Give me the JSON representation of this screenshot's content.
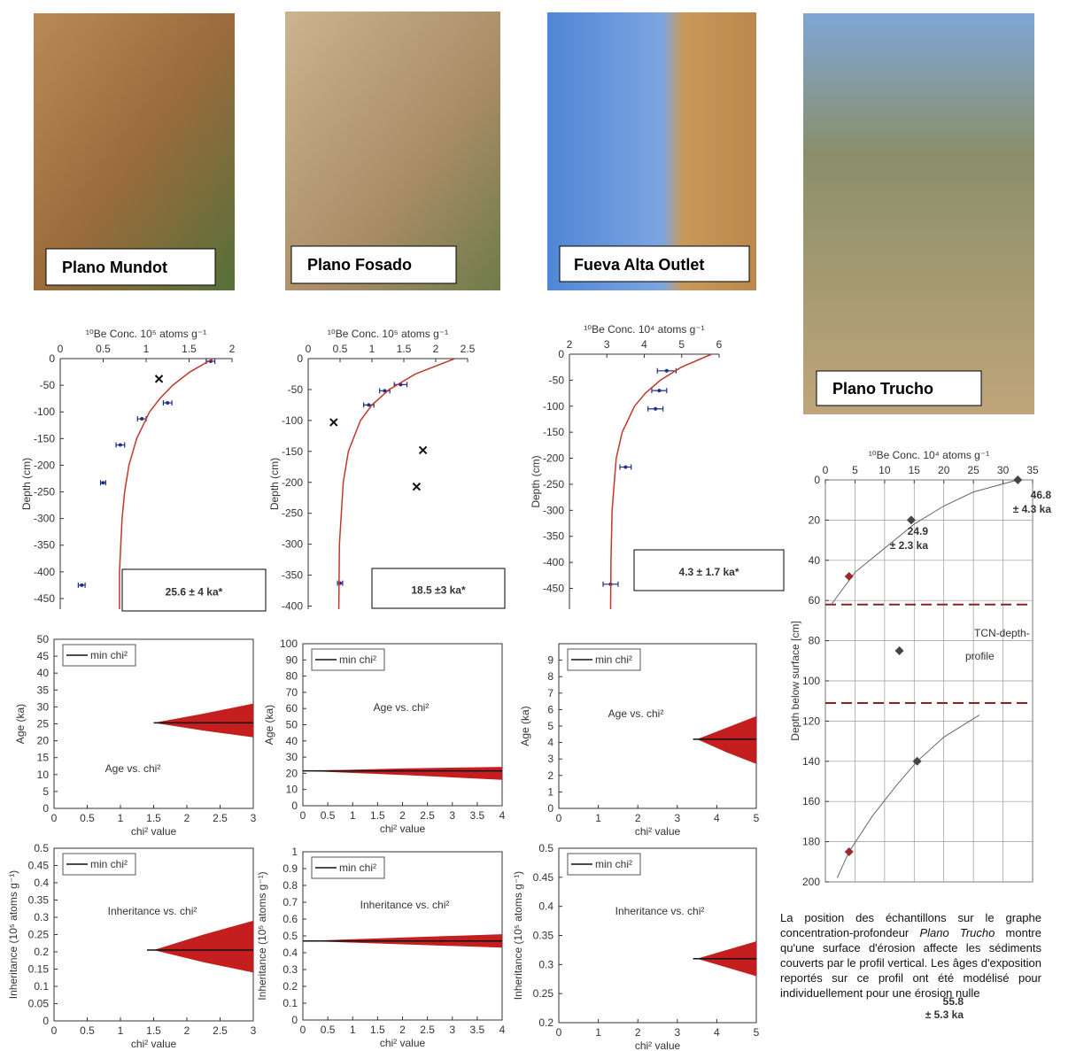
{
  "photos": [
    {
      "label": "Plano Mundot"
    },
    {
      "label": "Plano Fosado"
    },
    {
      "label": "Fueva Alta Outlet"
    },
    {
      "label": "Plano Trucho"
    }
  ],
  "caption": [
    "La position des échantillons sur le graphe concentration-profondeur ",
    "Plano Trucho",
    " montre qu'une surface d'érosion affecte les sédiments couverts par le profil vertical. Les âges d'exposition reportés sur ce profil ont été modélisé pour individuellement pour une érosion nulle"
  ],
  "chart_data": [
    {
      "type": "scatter",
      "xaxis": "top",
      "xlabel": "¹⁰Be Conc. 10⁵ atoms g⁻¹",
      "ylabel": "Depth (cm)",
      "xlim": [
        0,
        2
      ],
      "xticks": [
        0,
        0.5,
        1,
        1.5,
        2
      ],
      "ylim": [
        -470,
        0
      ],
      "yticks": [
        0,
        -50,
        -100,
        -150,
        -200,
        -250,
        -300,
        -350,
        -400,
        -450
      ],
      "annotations": [
        "25.6 ± 4 ka*"
      ],
      "series": [
        {
          "type": "scatter",
          "marker": "dot",
          "color": "#1f2f8a",
          "x": [
            1.75,
            1.25,
            0.95,
            0.7,
            0.5,
            0.25
          ],
          "values": [
            -5,
            -83,
            -113,
            -162,
            -233,
            -425
          ],
          "error": [
            0.05,
            0.05,
            0.05,
            0.05,
            0.03,
            0.04
          ]
        },
        {
          "type": "scatter",
          "marker": "x",
          "color": "#111111",
          "x": [
            1.15
          ],
          "values": [
            -38
          ]
        },
        {
          "type": "line",
          "color": "#c0392b",
          "x": [
            1.78,
            1.51,
            1.31,
            1.16,
            1.04,
            0.89,
            0.8,
            0.75,
            0.72,
            0.69,
            0.69
          ],
          "values": [
            0,
            -25,
            -50,
            -75,
            -100,
            -150,
            -200,
            -250,
            -300,
            -400,
            -470
          ]
        }
      ]
    },
    {
      "type": "scatter",
      "xaxis": "top",
      "xlabel": "¹⁰Be Conc. 10⁵ atoms g⁻¹",
      "ylabel": "Depth (cm)",
      "xlim": [
        0,
        2.5
      ],
      "xticks": [
        0,
        0.5,
        1,
        1.5,
        2,
        2.5
      ],
      "ylim": [
        -405,
        0
      ],
      "yticks": [
        0,
        -50,
        -100,
        -150,
        -200,
        -250,
        -300,
        -350,
        -400
      ],
      "annotations": [
        "18.5 ±3 ka*"
      ],
      "series": [
        {
          "type": "scatter",
          "marker": "dot",
          "color": "#1f2f8a",
          "x": [
            1.45,
            1.2,
            0.95,
            0.5
          ],
          "values": [
            -42,
            -52,
            -75,
            -363
          ],
          "error": [
            0.1,
            0.08,
            0.08,
            0.04
          ]
        },
        {
          "type": "scatter",
          "marker": "x",
          "color": "#111111",
          "x": [
            0.4,
            1.8,
            1.7
          ],
          "values": [
            -103,
            -148,
            -207
          ]
        },
        {
          "type": "line",
          "color": "#c0392b",
          "x": [
            2.3,
            1.68,
            1.27,
            1,
            0.82,
            0.63,
            0.55,
            0.49,
            0.48
          ],
          "values": [
            0,
            -25,
            -50,
            -75,
            -100,
            -150,
            -200,
            -300,
            -405
          ]
        }
      ]
    },
    {
      "type": "scatter",
      "xaxis": "top",
      "xlabel": "¹⁰Be Conc. 10⁴ atoms g⁻¹",
      "ylabel": "Depth (cm)",
      "xlim": [
        2,
        6
      ],
      "xticks": [
        2,
        3,
        4,
        5,
        6
      ],
      "ylim": [
        -490,
        0
      ],
      "yticks": [
        0,
        -50,
        -100,
        -150,
        -200,
        -250,
        -300,
        -350,
        -400,
        -450
      ],
      "annotations": [
        "4.3 ± 1.7 ka*"
      ],
      "series": [
        {
          "type": "scatter",
          "marker": "dot",
          "color": "#1f2f8a",
          "x": [
            4.6,
            4.4,
            4.3,
            3.5,
            3.1
          ],
          "values": [
            -32,
            -70,
            -105,
            -217,
            -442
          ],
          "error": [
            0.25,
            0.2,
            0.2,
            0.15,
            0.2
          ]
        },
        {
          "type": "line",
          "color": "#c0392b",
          "x": [
            5.8,
            4.99,
            4.43,
            4.03,
            3.74,
            3.41,
            3.25,
            3.14,
            3.11,
            3.1
          ],
          "values": [
            0,
            -25,
            -50,
            -75,
            -100,
            -150,
            -200,
            -300,
            -400,
            -490
          ]
        }
      ]
    },
    {
      "type": "band",
      "title": "Age vs. chi²",
      "xlabel": "chi² value",
      "ylabel": "Age (ka)",
      "xlim": [
        0,
        3
      ],
      "xticks": [
        0,
        0.5,
        1,
        1.5,
        2,
        2.5,
        3
      ],
      "ylim": [
        0,
        50
      ],
      "yticks": [
        0,
        5,
        10,
        15,
        20,
        25,
        30,
        35,
        40,
        45,
        50
      ],
      "series": [
        {
          "type": "band",
          "color": "#c41e1e",
          "x": [
            1.5,
            2.25,
            3
          ],
          "lower": [
            25.3,
            23,
            21
          ],
          "upper": [
            25.3,
            28,
            31
          ]
        },
        {
          "type": "line",
          "name": "min chi²",
          "color": "#111111",
          "x": [
            1.5,
            3
          ],
          "values": [
            25.3,
            25.3
          ]
        }
      ]
    },
    {
      "type": "band",
      "title": "Age vs. chi²",
      "xlabel": "chi² value",
      "ylabel": "Age (ka)",
      "xlim": [
        0,
        4
      ],
      "xticks": [
        0,
        0.5,
        1,
        1.5,
        2,
        2.5,
        3,
        3.5,
        4
      ],
      "ylim": [
        0,
        100
      ],
      "yticks": [
        0,
        10,
        20,
        30,
        40,
        50,
        60,
        70,
        80,
        90,
        100
      ],
      "series": [
        {
          "type": "band",
          "color": "#c41e1e",
          "x": [
            0,
            2,
            4
          ],
          "lower": [
            21.5,
            19,
            16
          ],
          "upper": [
            21.5,
            23,
            24
          ]
        },
        {
          "type": "line",
          "name": "min chi²",
          "color": "#111111",
          "x": [
            0,
            4
          ],
          "values": [
            21.5,
            21.5
          ]
        }
      ]
    },
    {
      "type": "band",
      "title": "Age vs. chi²",
      "xlabel": "chi² value",
      "ylabel": "Age (ka)",
      "xlim": [
        0,
        5
      ],
      "xticks": [
        0,
        1,
        2,
        3,
        4,
        5
      ],
      "ylim": [
        0,
        10
      ],
      "yticks": [
        0,
        1,
        2,
        3,
        4,
        5,
        6,
        7,
        8,
        9
      ],
      "series": [
        {
          "type": "band",
          "color": "#c41e1e",
          "x": [
            3.5,
            4.25,
            5
          ],
          "lower": [
            4.2,
            3.4,
            2.7
          ],
          "upper": [
            4.2,
            4.9,
            5.6
          ]
        },
        {
          "type": "line",
          "name": "min chi²",
          "color": "#111111",
          "x": [
            3.4,
            5
          ],
          "values": [
            4.2,
            4.2
          ]
        }
      ]
    },
    {
      "type": "band",
      "title": "Inheritance vs. chi²",
      "xlabel": "chi² value",
      "ylabel": "Inheritance (10⁵ atoms g⁻¹)",
      "xlim": [
        0,
        3
      ],
      "xticks": [
        0,
        0.5,
        1,
        1.5,
        2,
        2.5,
        3
      ],
      "ylim": [
        0,
        0.5
      ],
      "yticks": [
        0,
        0.05,
        0.1,
        0.15,
        0.2,
        0.25,
        0.3,
        0.35,
        0.4,
        0.45,
        0.5
      ],
      "series": [
        {
          "type": "band",
          "color": "#c41e1e",
          "x": [
            1.5,
            2.25,
            3
          ],
          "lower": [
            0.205,
            0.17,
            0.14
          ],
          "upper": [
            0.205,
            0.25,
            0.29
          ]
        },
        {
          "type": "line",
          "name": "min chi²",
          "color": "#111111",
          "x": [
            1.4,
            3
          ],
          "values": [
            0.205,
            0.205
          ]
        }
      ]
    },
    {
      "type": "band",
      "title": "Inheritance vs. chi²",
      "xlabel": "chi² value",
      "ylabel": "Inheritance (10⁵ atoms g⁻¹)",
      "xlim": [
        0,
        4
      ],
      "xticks": [
        0,
        0.5,
        1,
        1.5,
        2,
        2.5,
        3,
        3.5,
        4
      ],
      "ylim": [
        0,
        1
      ],
      "yticks": [
        0,
        0.1,
        0.2,
        0.3,
        0.4,
        0.5,
        0.6,
        0.7,
        0.8,
        0.9,
        1
      ],
      "series": [
        {
          "type": "band",
          "color": "#c41e1e",
          "x": [
            0,
            2,
            4
          ],
          "lower": [
            0.47,
            0.45,
            0.43
          ],
          "upper": [
            0.47,
            0.49,
            0.51
          ]
        },
        {
          "type": "line",
          "name": "min chi²",
          "color": "#111111",
          "x": [
            0,
            4
          ],
          "values": [
            0.47,
            0.47
          ]
        }
      ]
    },
    {
      "type": "band",
      "title": "Inheritance vs. chi²",
      "xlabel": "chi² value",
      "ylabel": "Inheritance (10⁵ atoms g⁻¹)",
      "xlim": [
        0,
        5
      ],
      "xticks": [
        0,
        1,
        2,
        3,
        4,
        5
      ],
      "ylim": [
        0.2,
        0.5
      ],
      "yticks": [
        0.2,
        0.25,
        0.3,
        0.35,
        0.4,
        0.45,
        0.5
      ],
      "series": [
        {
          "type": "band",
          "color": "#c41e1e",
          "x": [
            3.5,
            4.25,
            5
          ],
          "lower": [
            0.31,
            0.295,
            0.28
          ],
          "upper": [
            0.31,
            0.325,
            0.34
          ]
        },
        {
          "type": "line",
          "name": "min chi²",
          "color": "#111111",
          "x": [
            3.4,
            5
          ],
          "values": [
            0.31,
            0.31
          ]
        }
      ]
    },
    {
      "type": "scatter",
      "xaxis": "top",
      "grid": true,
      "xlabel": "¹⁰Be Conc. 10⁴ atoms g⁻¹",
      "ylabel": "Depth below surface [cm]",
      "xlim": [
        0,
        35
      ],
      "xticks": [
        0,
        5,
        10,
        15,
        20,
        25,
        30,
        35
      ],
      "ylim": [
        200,
        0
      ],
      "yticks": [
        0,
        20,
        40,
        60,
        80,
        100,
        120,
        140,
        160,
        180,
        200
      ],
      "annotations": [
        "46.8",
        "± 4.3 ka",
        "24.9",
        "± 2.3 ka",
        "55.8",
        "± 5.3 ka",
        "TCN-depth-",
        "profile"
      ],
      "dashed_lines": [
        62,
        111
      ],
      "dashed_color": "#8b2323",
      "series": [
        {
          "type": "line",
          "color": "#666666",
          "x": [
            1,
            5,
            10,
            15,
            20,
            25,
            32.5
          ],
          "values": [
            62,
            46,
            34,
            22,
            13,
            6,
            0
          ]
        },
        {
          "type": "line",
          "color": "#666666",
          "x": [
            2,
            4,
            8,
            12,
            15.5,
            20,
            26
          ],
          "values": [
            198,
            185,
            167,
            152,
            140,
            128,
            117
          ]
        },
        {
          "type": "scatter",
          "marker": "diamond",
          "color": "#444444",
          "colors": [
            "#444444",
            "#444444",
            "#9b2a2a",
            "#444444",
            "#444444",
            "#9b2a2a"
          ],
          "x": [
            32.5,
            14.5,
            4,
            12.5,
            15.5,
            4
          ],
          "values": [
            0,
            20,
            48,
            85,
            140,
            185
          ]
        }
      ]
    }
  ]
}
